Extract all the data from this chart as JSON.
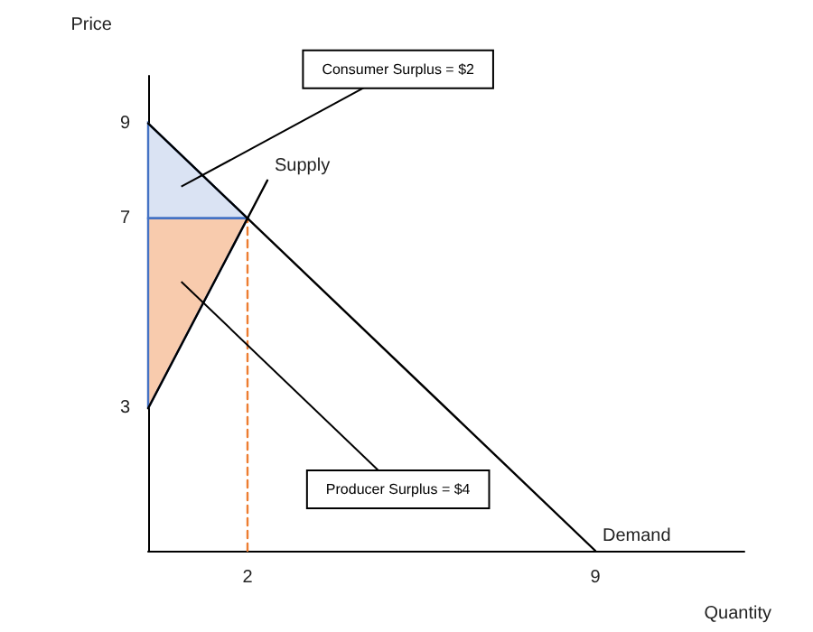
{
  "chart_data": {
    "type": "line",
    "xlabel": "Quantity",
    "ylabel": "Price",
    "xlim": [
      0,
      12
    ],
    "ylim": [
      0,
      10
    ],
    "xticks": [
      2,
      9
    ],
    "yticks": [
      3,
      7,
      9
    ],
    "grid": false,
    "legend": false,
    "marker": "none",
    "series": [
      {
        "type": "area",
        "color": "#dae3f3",
        "x": [
          0,
          2,
          0
        ],
        "values": [
          9,
          7,
          7
        ]
      },
      {
        "type": "area",
        "color": "#f8cbad",
        "x": [
          0,
          0,
          2
        ],
        "values": [
          7,
          3,
          7
        ]
      },
      {
        "color": "#ed7d31",
        "line_style": "dashed",
        "x": [
          2,
          2
        ],
        "values": [
          0,
          7
        ]
      },
      {
        "name": "Supply",
        "color": "#000000",
        "x": [
          0,
          2.4
        ],
        "values": [
          3,
          7.8
        ]
      },
      {
        "name": "Demand",
        "color": "#000000",
        "x": [
          0,
          9
        ],
        "values": [
          9,
          0
        ]
      }
    ],
    "annotations": [
      "Consumer Surplus = $2",
      "Producer Surplus = $4"
    ]
  }
}
